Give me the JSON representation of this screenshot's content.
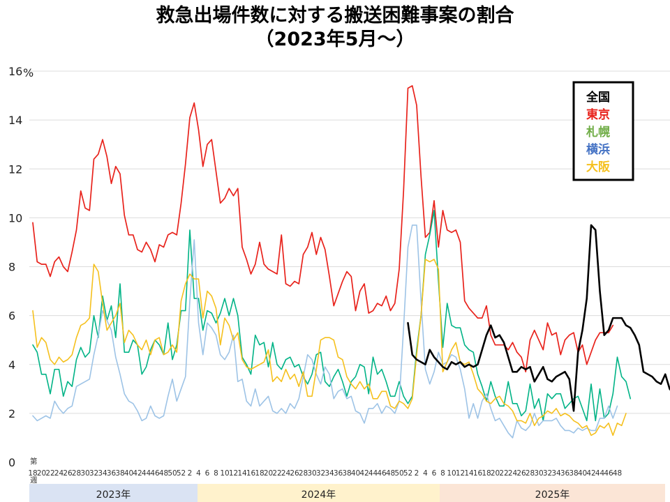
{
  "title": {
    "line1": "救急出場件数に対する搬送困難事案の割合",
    "line2": "（2023年5月～）"
  },
  "chart_data": {
    "type": "line",
    "title": "救急出場件数に対する搬送困難事案の割合（2023年5月～）",
    "ylabel": "%",
    "ylim": [
      0,
      16
    ],
    "y_ticks": [
      0,
      2,
      4,
      6,
      8,
      10,
      12,
      14,
      16
    ],
    "x_unit_top": "第",
    "x_unit_bottom": "週",
    "grid": "horizontal",
    "legend_position": "top-right",
    "years": [
      {
        "label": "2023年",
        "color": "#dae3f3"
      },
      {
        "label": "2024年",
        "color": "#fff2cc"
      },
      {
        "label": "2025年",
        "color": "#fbe5d6"
      }
    ],
    "x_week_labels": [
      "18",
      "20",
      "22",
      "24",
      "26",
      "28",
      "30",
      "32",
      "34",
      "36",
      "38",
      "40",
      "42",
      "44",
      "46",
      "48",
      "50",
      "52",
      "2",
      "4",
      "6",
      "8",
      "10",
      "12",
      "14",
      "16",
      "18",
      "20",
      "22",
      "24",
      "26",
      "28",
      "30",
      "32",
      "34",
      "36",
      "38",
      "40",
      "42",
      "44",
      "46",
      "48",
      "50",
      "52",
      "2",
      "4",
      "6",
      "8",
      "10",
      "12",
      "14",
      "16",
      "18",
      "20",
      "22",
      "24",
      "26",
      "28",
      "30",
      "32",
      "34",
      "36",
      "38",
      "40",
      "42",
      "44",
      "46",
      "48"
    ],
    "series": [
      {
        "name": "全国",
        "color": "#000000",
        "width": 2.6,
        "values": [
          null,
          null,
          null,
          null,
          null,
          null,
          null,
          null,
          null,
          null,
          null,
          null,
          null,
          null,
          null,
          null,
          null,
          null,
          null,
          null,
          null,
          null,
          null,
          null,
          null,
          null,
          null,
          null,
          null,
          null,
          null,
          null,
          null,
          null,
          null,
          null,
          null,
          null,
          null,
          null,
          null,
          null,
          null,
          null,
          null,
          null,
          null,
          null,
          null,
          null,
          null,
          null,
          null,
          null,
          null,
          null,
          null,
          null,
          null,
          null,
          null,
          null,
          null,
          null,
          null,
          null,
          null,
          null,
          null,
          null,
          null,
          null,
          null,
          null,
          null,
          null,
          null,
          null,
          null,
          null,
          null,
          null,
          null,
          null,
          null,
          null,
          5.7,
          4.4,
          4.2,
          4.1,
          4.0,
          4.6,
          4.3,
          4.1,
          3.9,
          3.8,
          4.1,
          4.0,
          4.1,
          3.9,
          4.0,
          3.9,
          4.0,
          4.6,
          5.2,
          5.6,
          5.1,
          5.2,
          4.9,
          4.3,
          3.7,
          3.7,
          3.9,
          3.8,
          3.9,
          3.3,
          3.6,
          3.9,
          3.4,
          3.3,
          3.5,
          3.6,
          3.7,
          3.4,
          2.1,
          4.5,
          5.4,
          6.7,
          9.7,
          9.5,
          7.0,
          5.2,
          5.4,
          5.9,
          5.9,
          5.9,
          5.6,
          5.5,
          5.2,
          4.8,
          3.7,
          3.6,
          3.5,
          3.3,
          3.2,
          3.6,
          3.0,
          2.8,
          2.6,
          2.7,
          2.4,
          2.7,
          2.4,
          2.4,
          2.4,
          2.5,
          3.1,
          2.8,
          2.8,
          3.1,
          3.0,
          2.8,
          2.5,
          2.7,
          2.8,
          2.8,
          2.4,
          2.6,
          2.4,
          2.4,
          2.7,
          3.0,
          3.0,
          2.9,
          3.2
        ]
      },
      {
        "name": "東京",
        "color": "#e8221b",
        "width": 1.7,
        "values": [
          9.8,
          8.2,
          8.1,
          8.1,
          7.6,
          8.2,
          8.4,
          8.0,
          7.8,
          8.6,
          9.5,
          11.1,
          10.4,
          10.3,
          12.4,
          12.6,
          13.2,
          12.5,
          11.4,
          12.1,
          11.8,
          10.1,
          9.3,
          9.3,
          8.7,
          8.6,
          9.0,
          8.7,
          8.2,
          8.9,
          8.8,
          9.3,
          9.4,
          9.3,
          10.6,
          12.2,
          14.1,
          14.7,
          13.6,
          12.1,
          13.0,
          13.2,
          11.9,
          10.6,
          10.8,
          11.2,
          10.9,
          11.2,
          8.8,
          8.3,
          7.7,
          8.1,
          9.0,
          8.1,
          7.9,
          7.8,
          7.7,
          9.3,
          7.3,
          7.2,
          7.4,
          7.3,
          8.5,
          8.8,
          9.4,
          8.5,
          9.2,
          8.7,
          7.6,
          6.4,
          6.9,
          7.4,
          7.8,
          7.6,
          6.2,
          7.0,
          7.3,
          6.1,
          6.2,
          6.5,
          6.4,
          6.8,
          6.2,
          6.5,
          7.9,
          11.1,
          15.3,
          15.4,
          14.6,
          11.7,
          9.2,
          9.4,
          10.7,
          8.8,
          10.3,
          9.5,
          9.4,
          9.5,
          9.0,
          6.6,
          6.3,
          6.1,
          5.9,
          5.9,
          6.4,
          5.2,
          4.8,
          4.8,
          4.8,
          4.6,
          4.9,
          4.5,
          4.3,
          3.7,
          5.0,
          5.4,
          5.0,
          4.6,
          5.7,
          5.2,
          5.3,
          4.4,
          5.0,
          5.2,
          5.3,
          4.5,
          4.8,
          4.0,
          4.5,
          5.0,
          5.3,
          5.3,
          5.3,
          5.6
        ]
      },
      {
        "name": "札幌",
        "color": "#00b386",
        "width": 1.6,
        "values": [
          4.8,
          4.5,
          3.6,
          3.6,
          2.8,
          3.8,
          3.8,
          2.7,
          3.3,
          3.1,
          4.2,
          4.7,
          4.3,
          4.5,
          6.0,
          5.1,
          6.8,
          5.8,
          6.4,
          5.1,
          7.3,
          4.5,
          4.5,
          5.0,
          4.8,
          3.6,
          3.9,
          4.6,
          5.0,
          4.8,
          4.4,
          5.7,
          4.2,
          4.8,
          6.2,
          6.2,
          9.5,
          6.7,
          6.7,
          5.4,
          6.2,
          6.1,
          5.7,
          6.1,
          6.7,
          6.0,
          6.7,
          6.0,
          4.3,
          4.0,
          3.6,
          5.2,
          4.8,
          4.9,
          3.9,
          4.9,
          4.0,
          3.8,
          4.2,
          4.3,
          3.9,
          4.0,
          3.5,
          3.2,
          3.6,
          4.4,
          4.5,
          3.3,
          3.1,
          3.5,
          3.8,
          3.3,
          2.7,
          3.3,
          3.5,
          4.0,
          3.9,
          2.8,
          4.3,
          3.6,
          3.8,
          3.3,
          2.7,
          2.7,
          3.3,
          2.7,
          2.4,
          2.7,
          4.6,
          6.0,
          8.5,
          9.3,
          10.3,
          7.4,
          4.7,
          6.5,
          5.6,
          5.5,
          5.5,
          4.8,
          4.6,
          4.5,
          3.6,
          3.1,
          2.5,
          3.3,
          2.7,
          2.3,
          2.3,
          3.3,
          2.4,
          2.4,
          1.9,
          2.1,
          3.2,
          2.2,
          2.6,
          1.7,
          2.8,
          2.6,
          2.8,
          2.8,
          2.2,
          2.4,
          2.6,
          2.7,
          2.2,
          1.7,
          3.2,
          1.7,
          3.0,
          1.8,
          2.0,
          2.8,
          4.3,
          3.5,
          3.3,
          2.6
        ]
      },
      {
        "name": "横浜",
        "color": "#9dc3e6",
        "width": 1.6,
        "values": [
          1.9,
          1.7,
          1.8,
          1.9,
          1.8,
          2.5,
          2.2,
          2.0,
          2.2,
          2.3,
          3.1,
          3.2,
          3.3,
          3.4,
          4.4,
          5.2,
          6.2,
          5.8,
          5.4,
          4.3,
          3.6,
          2.8,
          2.5,
          2.4,
          2.1,
          1.7,
          1.8,
          2.3,
          1.9,
          1.8,
          1.9,
          2.7,
          3.4,
          2.5,
          3.0,
          3.5,
          6.6,
          9.1,
          5.7,
          4.4,
          5.7,
          5.5,
          5.2,
          4.4,
          4.2,
          4.5,
          5.2,
          3.3,
          3.4,
          2.5,
          2.3,
          3.0,
          2.3,
          2.5,
          2.7,
          2.1,
          2.0,
          2.2,
          2.0,
          2.4,
          2.2,
          2.6,
          3.5,
          4.4,
          4.2,
          3.6,
          3.2,
          3.9,
          3.6,
          2.6,
          2.9,
          3.0,
          2.6,
          2.7,
          2.1,
          2.0,
          1.6,
          2.2,
          2.2,
          2.4,
          2.0,
          2.3,
          2.2,
          2.0,
          2.5,
          5.5,
          8.8,
          9.7,
          9.7,
          6.6,
          3.8,
          3.2,
          3.7,
          4.5,
          4.0,
          4.1,
          4.4,
          4.3,
          3.8,
          3.0,
          1.8,
          2.4,
          1.8,
          2.5,
          2.8,
          2.2,
          1.7,
          1.8,
          1.5,
          1.2,
          1.0,
          1.7,
          1.4,
          1.3,
          1.5,
          2.0,
          1.5,
          1.7,
          1.7,
          1.7,
          1.8,
          1.5,
          1.3,
          1.3,
          1.2,
          1.4,
          1.3,
          1.4,
          1.3,
          1.3,
          1.8,
          1.8,
          2.3,
          1.8,
          2.3
        ]
      },
      {
        "name": "大阪",
        "color": "#f5c01d",
        "width": 1.6,
        "values": [
          6.2,
          4.7,
          5.1,
          4.9,
          4.2,
          4.0,
          4.3,
          4.1,
          4.2,
          4.4,
          5.1,
          5.6,
          5.7,
          5.9,
          8.1,
          7.8,
          6.5,
          5.4,
          5.7,
          6.0,
          6.5,
          4.9,
          5.4,
          5.2,
          4.8,
          4.6,
          5.0,
          4.4,
          5.0,
          5.1,
          4.4,
          4.5,
          4.8,
          4.5,
          6.6,
          7.3,
          7.7,
          7.5,
          7.5,
          5.9,
          7.0,
          6.8,
          6.3,
          4.8,
          5.9,
          5.6,
          5.0,
          5.3,
          4.2,
          3.9,
          3.8,
          3.9,
          4.0,
          4.1,
          4.6,
          3.3,
          3.5,
          3.3,
          3.8,
          3.4,
          3.6,
          3.1,
          3.7,
          2.7,
          2.7,
          3.8,
          5.0,
          5.1,
          5.1,
          5.0,
          4.3,
          4.2,
          3.5,
          3.2,
          3.0,
          3.3,
          3.0,
          3.2,
          2.6,
          2.6,
          2.9,
          2.9,
          2.3,
          2.2,
          2.5,
          2.4,
          2.2,
          2.6,
          4.4,
          6.0,
          8.3,
          8.2,
          8.3,
          7.9,
          3.7,
          4.1,
          4.6,
          4.9,
          4.1,
          4.0,
          4.1,
          3.6,
          3.0,
          2.8,
          2.5,
          2.4,
          2.6,
          2.7,
          2.4,
          2.3,
          2.1,
          1.7,
          1.7,
          1.6,
          2.0,
          1.5,
          1.8,
          1.9,
          2.1,
          2.0,
          2.2,
          1.9,
          2.0,
          1.9,
          1.7,
          1.6,
          1.4,
          1.5,
          1.1,
          1.2,
          1.5,
          1.4,
          1.6,
          1.1,
          1.6,
          1.5,
          2.0
        ]
      }
    ]
  }
}
